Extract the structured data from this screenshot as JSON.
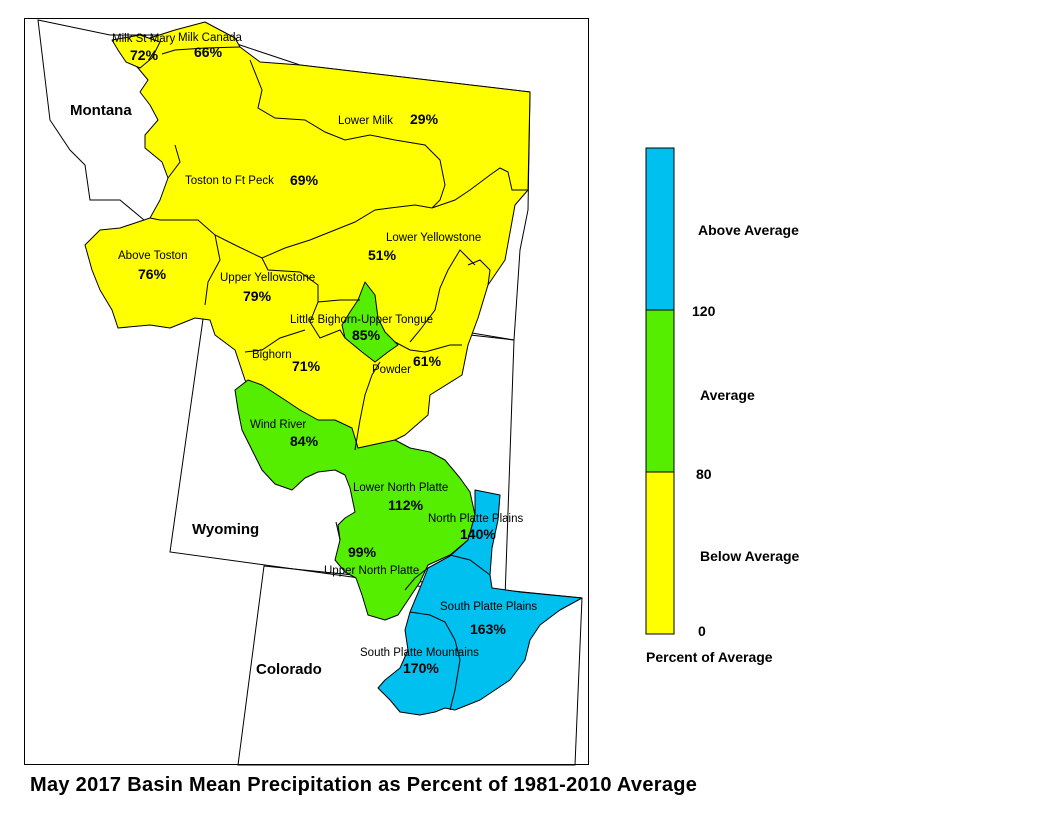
{
  "title": "May 2017 Basin Mean Precipitation as Percent of 1981-2010 Average",
  "colors": {
    "below": "#ffff00",
    "average": "#55ee00",
    "above": "#00c0f0",
    "none": "#ffffff"
  },
  "states": [
    {
      "name": "Montana"
    },
    {
      "name": "Wyoming"
    },
    {
      "name": "Colorado"
    }
  ],
  "basins": [
    {
      "name": "Milk St Mary",
      "pct": "72%",
      "category": "below"
    },
    {
      "name": "Milk Canada",
      "pct": "66%",
      "category": "below"
    },
    {
      "name": "Lower Milk",
      "pct": "29%",
      "category": "below"
    },
    {
      "name": "Toston to Ft Peck",
      "pct": "69%",
      "category": "below"
    },
    {
      "name": "Above Toston",
      "pct": "76%",
      "category": "below"
    },
    {
      "name": "Upper Yellowstone",
      "pct": "79%",
      "category": "below"
    },
    {
      "name": "Lower Yellowstone",
      "pct": "51%",
      "category": "below"
    },
    {
      "name": "Little Bighorn-Upper Tongue",
      "pct": "85%",
      "category": "average"
    },
    {
      "name": "Bighorn",
      "pct": "71%",
      "category": "below"
    },
    {
      "name": "Powder",
      "pct": "61%",
      "category": "below"
    },
    {
      "name": "Wind River",
      "pct": "84%",
      "category": "average"
    },
    {
      "name": "Lower North Platte",
      "pct": "112%",
      "category": "average"
    },
    {
      "name": "North Platte Plains",
      "pct": "140%",
      "category": "above"
    },
    {
      "name": "Upper North Platte",
      "pct": "99%",
      "category": "average"
    },
    {
      "name": "South Platte Plains",
      "pct": "163%",
      "category": "above"
    },
    {
      "name": "South Platte Mountains",
      "pct": "170%",
      "category": "above"
    }
  ],
  "legend": {
    "title": "Percent of Average",
    "categories": [
      {
        "label": "Above Average",
        "color": "#00c0f0"
      },
      {
        "label": "Average",
        "color": "#55ee00"
      },
      {
        "label": "Below Average",
        "color": "#ffff00"
      }
    ],
    "breaks": [
      "120",
      "80",
      "0"
    ]
  }
}
